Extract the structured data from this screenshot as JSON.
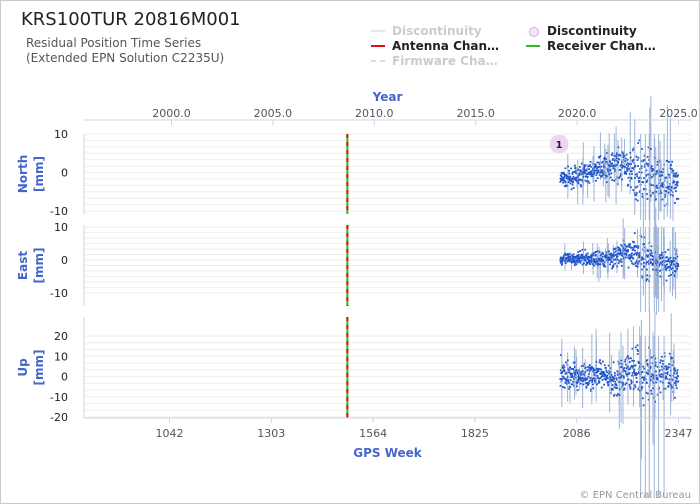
{
  "title": "KRS100TUR 20816M001",
  "subtitle_line1": "Residual Position Time Series",
  "subtitle_line2": "(Extended EPN Solution C2235U)",
  "credits": "© EPN Central Bureau",
  "legend": [
    {
      "label": "Discontinuity",
      "symbol": "line",
      "color": "#e8e8e8",
      "dimmed": true
    },
    {
      "label": "Discontinuity",
      "symbol": "circle",
      "color": "#d9a7e8",
      "dimmed": false
    },
    {
      "label": "Antenna Chan…",
      "symbol": "line",
      "color": "#dd1111",
      "dimmed": false
    },
    {
      "label": "Receiver Chan…",
      "symbol": "line",
      "color": "#33bb22",
      "dimmed": false
    },
    {
      "label": "Firmware Cha…",
      "symbol": "dashed",
      "color": "#dddddd",
      "dimmed": true
    }
  ],
  "colors": {
    "series": "#2255cc",
    "error_bar": "#9db3d8",
    "axis_title": "#4466cc",
    "antenna_change": "#dd1111",
    "receiver_change": "#33bb22",
    "discontinuity_marker": "#ecd6f4"
  },
  "chart_data": {
    "type": "scatter",
    "top_axis": {
      "title": "Year",
      "ticks": [
        "2000.0",
        "2005.0",
        "2010.0",
        "2015.0",
        "2020.0",
        "2025.0"
      ],
      "tick_values": [
        2000.0,
        2005.0,
        2010.0,
        2015.0,
        2020.0,
        2025.0
      ]
    },
    "bottom_axis": {
      "title": "GPS Week",
      "ticks": [
        "1042",
        "1303",
        "1564",
        "1825",
        "2086",
        "2347"
      ],
      "tick_values": [
        1042,
        1303,
        1564,
        1825,
        2086,
        2347
      ],
      "range": [
        880,
        2355
      ]
    },
    "events": [
      {
        "type": "Antenna Change",
        "gps_week": 1498
      },
      {
        "type": "Receiver Change",
        "gps_week": 1498
      }
    ],
    "discontinuities": [
      {
        "label": "1",
        "gps_week": 2041,
        "panel": "North"
      }
    ],
    "data_span": {
      "start_week": 2044,
      "end_week": 2347
    },
    "panels": [
      {
        "name": "North",
        "ylabel": "North [mm]",
        "ylim": [
          -10,
          10
        ],
        "yticks": [
          10,
          0,
          -10
        ],
        "trend": [
          [
            2044,
            -1.8
          ],
          [
            2090,
            -1.0
          ],
          [
            2140,
            0.8
          ],
          [
            2180,
            1.8
          ],
          [
            2220,
            1.0
          ],
          [
            2260,
            -1.0
          ],
          [
            2300,
            -2.5
          ],
          [
            2347,
            -2.0
          ]
        ],
        "scatter_mm": [
          [
            2044,
            2.0
          ],
          [
            2150,
            2.5
          ],
          [
            2230,
            4.5
          ],
          [
            2260,
            7.0
          ],
          [
            2300,
            5.5
          ],
          [
            2347,
            4.5
          ]
        ]
      },
      {
        "name": "East",
        "ylabel": "East [mm]",
        "ylim": [
          -14,
          10
        ],
        "yticks": [
          10,
          0,
          -10
        ],
        "trend": [
          [
            2044,
            0.0
          ],
          [
            2090,
            0.5
          ],
          [
            2140,
            0.2
          ],
          [
            2180,
            0.8
          ],
          [
            2220,
            2.5
          ],
          [
            2260,
            0.5
          ],
          [
            2300,
            -1.0
          ],
          [
            2347,
            -1.5
          ]
        ],
        "scatter_mm": [
          [
            2044,
            1.5
          ],
          [
            2150,
            2.0
          ],
          [
            2220,
            3.5
          ],
          [
            2260,
            6.0
          ],
          [
            2300,
            4.0
          ],
          [
            2347,
            3.5
          ]
        ]
      },
      {
        "name": "Up",
        "ylabel": "Up [mm]",
        "ylim": [
          -20,
          30
        ],
        "yticks": [
          20,
          10,
          0,
          -10,
          -20
        ],
        "trend": [
          [
            2044,
            1.0
          ],
          [
            2090,
            0.0
          ],
          [
            2140,
            0.5
          ],
          [
            2180,
            -2.0
          ],
          [
            2220,
            3.0
          ],
          [
            2260,
            0.0
          ],
          [
            2300,
            2.0
          ],
          [
            2347,
            0.0
          ]
        ],
        "scatter_mm": [
          [
            2044,
            6.5
          ],
          [
            2150,
            6.0
          ],
          [
            2220,
            9.0
          ],
          [
            2260,
            12.0
          ],
          [
            2300,
            9.0
          ],
          [
            2347,
            8.0
          ]
        ]
      }
    ]
  }
}
